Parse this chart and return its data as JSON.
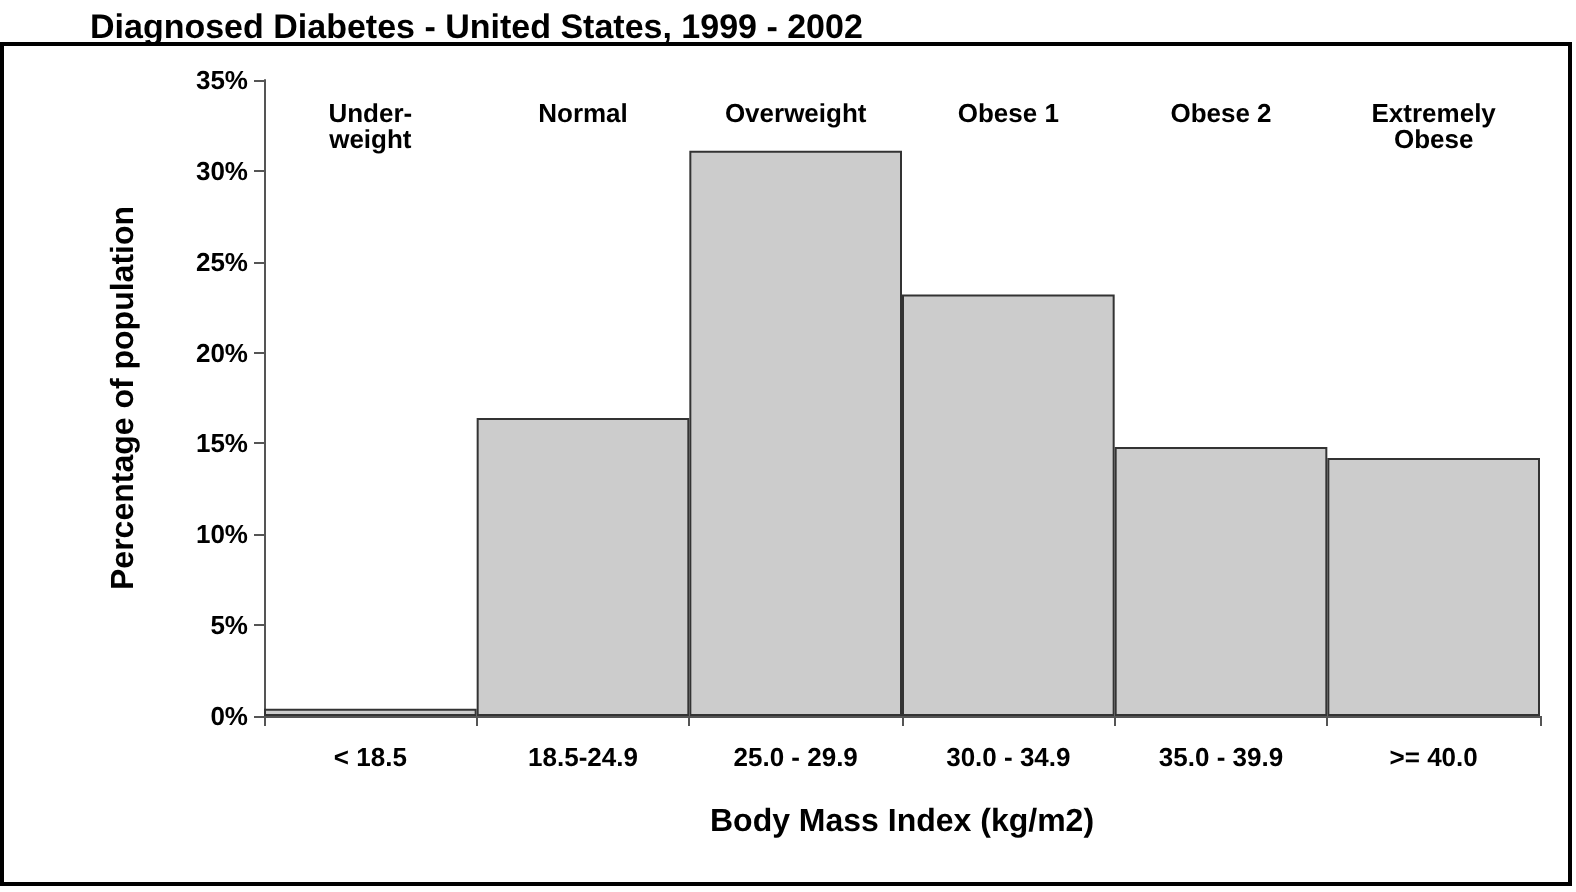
{
  "chart_data": {
    "type": "bar",
    "title": "Diagnosed Diabetes - United States, 1999 - 2002",
    "xlabel": "Body Mass Index (kg/m2)",
    "ylabel": "Percentage of population",
    "categories": [
      "< 18.5",
      "18.5-24.9",
      "25.0 - 29.9",
      "30.0 - 34.9",
      "35.0 - 39.9",
      ">= 40.0"
    ],
    "values": [
      0.4,
      16.4,
      31.1,
      23.2,
      14.8,
      14.2
    ],
    "color": "#cccccc",
    "ylim": [
      0,
      35
    ],
    "yticks": [
      {
        "value": 0,
        "label": "0%"
      },
      {
        "value": 5,
        "label": "5%"
      },
      {
        "value": 10,
        "label": "10%"
      },
      {
        "value": 15,
        "label": "15%"
      },
      {
        "value": 20,
        "label": "20%"
      },
      {
        "value": 25,
        "label": "25%"
      },
      {
        "value": 30,
        "label": "30%"
      },
      {
        "value": 35,
        "label": "35%"
      }
    ],
    "annotations": [
      "Under-\nweight",
      "Normal",
      "Overweight",
      "Obese 1",
      "Obese 2",
      "Extremely\nObese"
    ]
  }
}
